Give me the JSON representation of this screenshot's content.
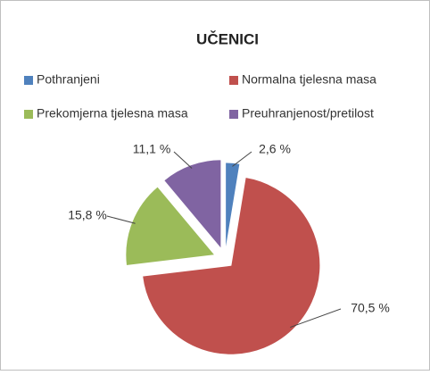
{
  "chart_data": {
    "type": "pie",
    "title": "UČENICI",
    "categories": [
      "Pothranjeni",
      "Normalna tjelesna masa",
      "Prekomjerna tjelesna masa",
      "Preuhranjenost/pretilost"
    ],
    "values": [
      2.6,
      70.5,
      15.8,
      11.1
    ],
    "value_labels": [
      "2,6 %",
      "70,5 %",
      "15,8 %",
      "11,1 %"
    ],
    "colors": [
      "#4F81BD",
      "#C0504D",
      "#9BBB59",
      "#8064A2"
    ],
    "legend": "top"
  }
}
